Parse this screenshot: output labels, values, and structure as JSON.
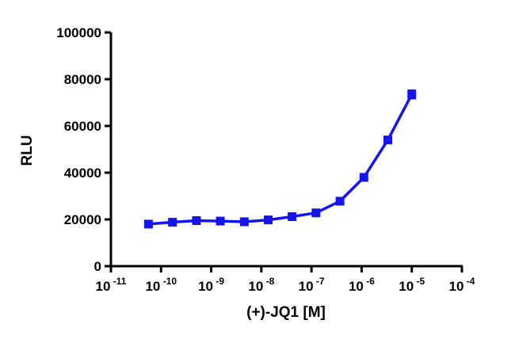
{
  "chart_data": {
    "type": "line",
    "x_label": "(+)-JQ1 [M]",
    "y_label": "RLU",
    "log_x": true,
    "x": [
      5.6e-11,
      1.69e-10,
      5.08e-10,
      1.52e-09,
      4.57e-09,
      1.37e-08,
      4.1e-08,
      1.23e-07,
      3.7e-07,
      1.11e-06,
      3.33e-06,
      1e-05
    ],
    "series": [
      {
        "name": "RLU",
        "color": "#1414f0",
        "values": [
          18000,
          18800,
          19500,
          19300,
          19000,
          19800,
          21200,
          22800,
          27800,
          38000,
          54000,
          73500
        ],
        "errors": [
          500,
          400,
          500,
          400,
          300,
          400,
          400,
          400,
          500,
          1200,
          600,
          1800
        ]
      }
    ],
    "xlim": [
      1e-11,
      0.0001
    ],
    "xticks": [
      {
        "value": 1e-11,
        "label": "10-11"
      },
      {
        "value": 1e-10,
        "label": "10-10"
      },
      {
        "value": 1e-09,
        "label": "10-9"
      },
      {
        "value": 1e-08,
        "label": "10-8"
      },
      {
        "value": 1e-07,
        "label": "10-7"
      },
      {
        "value": 1e-06,
        "label": "10-6"
      },
      {
        "value": 1e-05,
        "label": "10-5"
      },
      {
        "value": 0.0001,
        "label": "10-4"
      }
    ],
    "ylim": [
      0,
      100000
    ],
    "yticks": [
      0,
      20000,
      40000,
      60000,
      80000,
      100000
    ]
  }
}
